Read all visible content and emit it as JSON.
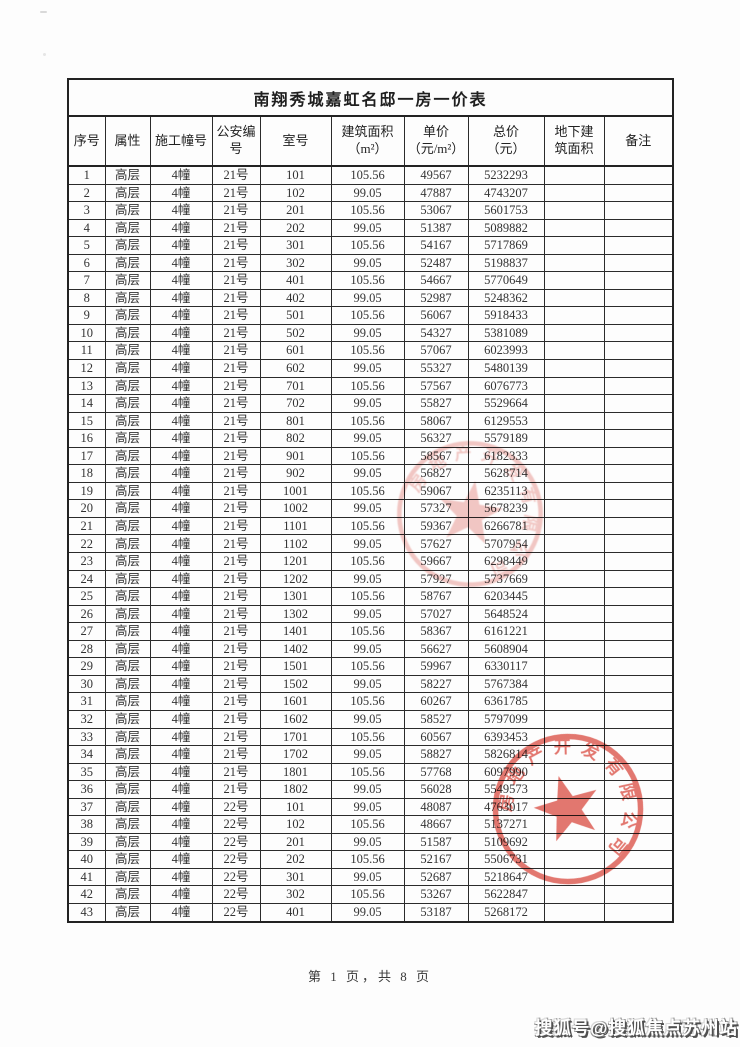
{
  "table": {
    "title": "南翔秀城嘉虹名邸一房一价表",
    "columns": [
      "序号",
      "属性",
      "施工幢号",
      "公安编\n号",
      "室号",
      "建筑面积\n（m²）",
      "单价\n（元/m²）",
      "总价\n（元）",
      "地下建\n筑面积",
      "备注"
    ],
    "rows": [
      [
        "1",
        "高层",
        "4幢",
        "21号",
        "101",
        "105.56",
        "49567",
        "5232293",
        "",
        ""
      ],
      [
        "2",
        "高层",
        "4幢",
        "21号",
        "102",
        "99.05",
        "47887",
        "4743207",
        "",
        ""
      ],
      [
        "3",
        "高层",
        "4幢",
        "21号",
        "201",
        "105.56",
        "53067",
        "5601753",
        "",
        ""
      ],
      [
        "4",
        "高层",
        "4幢",
        "21号",
        "202",
        "99.05",
        "51387",
        "5089882",
        "",
        ""
      ],
      [
        "5",
        "高层",
        "4幢",
        "21号",
        "301",
        "105.56",
        "54167",
        "5717869",
        "",
        ""
      ],
      [
        "6",
        "高层",
        "4幢",
        "21号",
        "302",
        "99.05",
        "52487",
        "5198837",
        "",
        ""
      ],
      [
        "7",
        "高层",
        "4幢",
        "21号",
        "401",
        "105.56",
        "54667",
        "5770649",
        "",
        ""
      ],
      [
        "8",
        "高层",
        "4幢",
        "21号",
        "402",
        "99.05",
        "52987",
        "5248362",
        "",
        ""
      ],
      [
        "9",
        "高层",
        "4幢",
        "21号",
        "501",
        "105.56",
        "56067",
        "5918433",
        "",
        ""
      ],
      [
        "10",
        "高层",
        "4幢",
        "21号",
        "502",
        "99.05",
        "54327",
        "5381089",
        "",
        ""
      ],
      [
        "11",
        "高层",
        "4幢",
        "21号",
        "601",
        "105.56",
        "57067",
        "6023993",
        "",
        ""
      ],
      [
        "12",
        "高层",
        "4幢",
        "21号",
        "602",
        "99.05",
        "55327",
        "5480139",
        "",
        ""
      ],
      [
        "13",
        "高层",
        "4幢",
        "21号",
        "701",
        "105.56",
        "57567",
        "6076773",
        "",
        ""
      ],
      [
        "14",
        "高层",
        "4幢",
        "21号",
        "702",
        "99.05",
        "55827",
        "5529664",
        "",
        ""
      ],
      [
        "15",
        "高层",
        "4幢",
        "21号",
        "801",
        "105.56",
        "58067",
        "6129553",
        "",
        ""
      ],
      [
        "16",
        "高层",
        "4幢",
        "21号",
        "802",
        "99.05",
        "56327",
        "5579189",
        "",
        ""
      ],
      [
        "17",
        "高层",
        "4幢",
        "21号",
        "901",
        "105.56",
        "58567",
        "6182333",
        "",
        ""
      ],
      [
        "18",
        "高层",
        "4幢",
        "21号",
        "902",
        "99.05",
        "56827",
        "5628714",
        "",
        ""
      ],
      [
        "19",
        "高层",
        "4幢",
        "21号",
        "1001",
        "105.56",
        "59067",
        "6235113",
        "",
        ""
      ],
      [
        "20",
        "高层",
        "4幢",
        "21号",
        "1002",
        "99.05",
        "57327",
        "5678239",
        "",
        ""
      ],
      [
        "21",
        "高层",
        "4幢",
        "21号",
        "1101",
        "105.56",
        "59367",
        "6266781",
        "",
        ""
      ],
      [
        "22",
        "高层",
        "4幢",
        "21号",
        "1102",
        "99.05",
        "57627",
        "5707954",
        "",
        ""
      ],
      [
        "23",
        "高层",
        "4幢",
        "21号",
        "1201",
        "105.56",
        "59667",
        "6298449",
        "",
        ""
      ],
      [
        "24",
        "高层",
        "4幢",
        "21号",
        "1202",
        "99.05",
        "57927",
        "5737669",
        "",
        ""
      ],
      [
        "25",
        "高层",
        "4幢",
        "21号",
        "1301",
        "105.56",
        "58767",
        "6203445",
        "",
        ""
      ],
      [
        "26",
        "高层",
        "4幢",
        "21号",
        "1302",
        "99.05",
        "57027",
        "5648524",
        "",
        ""
      ],
      [
        "27",
        "高层",
        "4幢",
        "21号",
        "1401",
        "105.56",
        "58367",
        "6161221",
        "",
        ""
      ],
      [
        "28",
        "高层",
        "4幢",
        "21号",
        "1402",
        "99.05",
        "56627",
        "5608904",
        "",
        ""
      ],
      [
        "29",
        "高层",
        "4幢",
        "21号",
        "1501",
        "105.56",
        "59967",
        "6330117",
        "",
        ""
      ],
      [
        "30",
        "高层",
        "4幢",
        "21号",
        "1502",
        "99.05",
        "58227",
        "5767384",
        "",
        ""
      ],
      [
        "31",
        "高层",
        "4幢",
        "21号",
        "1601",
        "105.56",
        "60267",
        "6361785",
        "",
        ""
      ],
      [
        "32",
        "高层",
        "4幢",
        "21号",
        "1602",
        "99.05",
        "58527",
        "5797099",
        "",
        ""
      ],
      [
        "33",
        "高层",
        "4幢",
        "21号",
        "1701",
        "105.56",
        "60567",
        "6393453",
        "",
        ""
      ],
      [
        "34",
        "高层",
        "4幢",
        "21号",
        "1702",
        "99.05",
        "58827",
        "5826814",
        "",
        ""
      ],
      [
        "35",
        "高层",
        "4幢",
        "21号",
        "1801",
        "105.56",
        "57768",
        "6097990",
        "",
        ""
      ],
      [
        "36",
        "高层",
        "4幢",
        "21号",
        "1802",
        "99.05",
        "56028",
        "5549573",
        "",
        ""
      ],
      [
        "37",
        "高层",
        "4幢",
        "22号",
        "101",
        "99.05",
        "48087",
        "4763017",
        "",
        ""
      ],
      [
        "38",
        "高层",
        "4幢",
        "22号",
        "102",
        "105.56",
        "48667",
        "5137271",
        "",
        ""
      ],
      [
        "39",
        "高层",
        "4幢",
        "22号",
        "201",
        "99.05",
        "51587",
        "5109692",
        "",
        ""
      ],
      [
        "40",
        "高层",
        "4幢",
        "22号",
        "202",
        "105.56",
        "52167",
        "5506731",
        "",
        ""
      ],
      [
        "41",
        "高层",
        "4幢",
        "22号",
        "301",
        "99.05",
        "52687",
        "5218647",
        "",
        ""
      ],
      [
        "42",
        "高层",
        "4幢",
        "22号",
        "302",
        "105.56",
        "53267",
        "5622847",
        "",
        ""
      ],
      [
        "43",
        "高层",
        "4幢",
        "22号",
        "401",
        "99.05",
        "53187",
        "5268172",
        "",
        ""
      ]
    ]
  },
  "stamps": [
    {
      "text": "房地产开发有限公司"
    },
    {
      "text": "房地产开发有限公司"
    }
  ],
  "footer": {
    "text": "第 1 页，共 8 页"
  },
  "watermark": {
    "text": "搜狐号@搜狐焦点苏州站"
  },
  "colors": {
    "stamp_red": "#d9544a",
    "border": "#2b2b2b",
    "text": "#333333",
    "watermark_shadow": "#4f4f4f"
  }
}
